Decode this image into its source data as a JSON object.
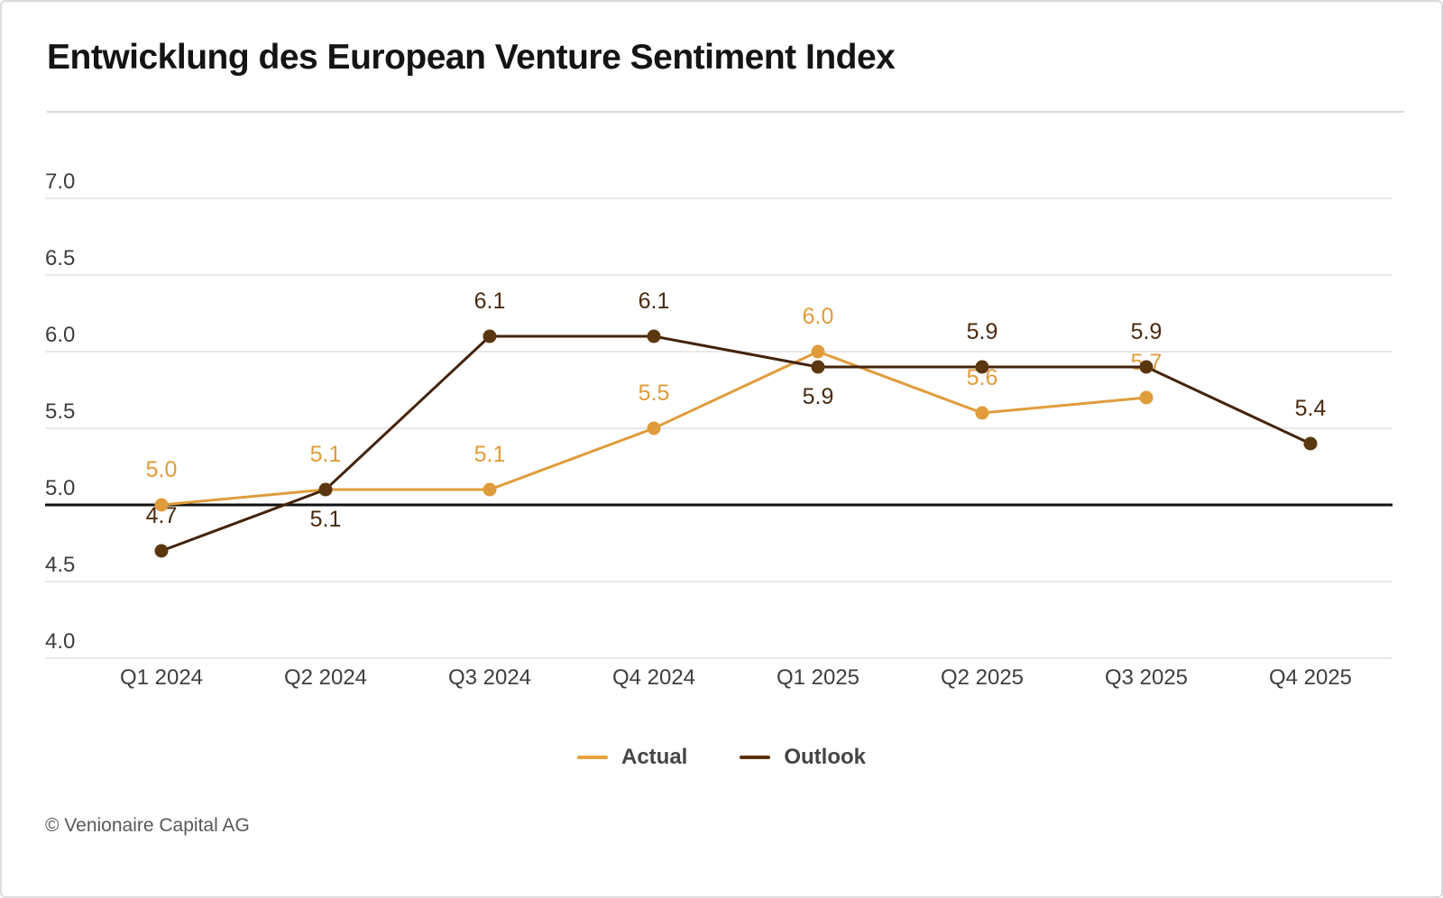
{
  "card": {
    "title": "Entwicklung des European Venture Sentiment Index"
  },
  "legend": {
    "items": [
      {
        "label": "Actual",
        "color": "#E8A23C"
      },
      {
        "label": "Outlook",
        "color": "#5C3005"
      }
    ]
  },
  "footer": {
    "copyright": "© Venionaire Capital AG"
  },
  "colors": {
    "actual_line": "#E09C3B",
    "actual_dot": "#E09C3B",
    "actual_label": "#E09C3B",
    "outlook_line": "#44230A",
    "outlook_dot": "#5B3710",
    "outlook_label": "#4A2A0E",
    "baseline": "#101010",
    "grid": "#e9e9e9",
    "axis_text": "#3e3e3e",
    "title_text": "#141414",
    "footer_text": "#585858"
  },
  "chart_data": {
    "type": "line",
    "title": "Entwicklung des European Venture Sentiment Index",
    "categories": [
      "Q1 2024",
      "Q2 2024",
      "Q3 2024",
      "Q4 2024",
      "Q1 2025",
      "Q2 2025",
      "Q3 2025",
      "Q4 2025"
    ],
    "series": [
      {
        "name": "Actual",
        "values": [
          5.0,
          5.1,
          5.1,
          5.5,
          6.0,
          5.6,
          5.7,
          null
        ],
        "label_placements": [
          "above",
          "above",
          "above",
          "above",
          "above",
          "above",
          "above",
          null
        ]
      },
      {
        "name": "Outlook",
        "values": [
          4.7,
          5.1,
          6.1,
          6.1,
          5.9,
          5.9,
          5.9,
          5.4
        ],
        "label_placements": [
          "above",
          "below",
          "above",
          "above",
          "below",
          "above",
          "above",
          "above"
        ]
      }
    ],
    "y_ticks": [
      "7.0",
      "6.5",
      "6.0",
      "5.5",
      "5.0",
      "4.5",
      "4.0"
    ],
    "ylim": [
      4.0,
      7.0
    ],
    "baseline": 5.0,
    "grid": true,
    "legend_position": "bottom",
    "xlabel": "",
    "ylabel": ""
  }
}
